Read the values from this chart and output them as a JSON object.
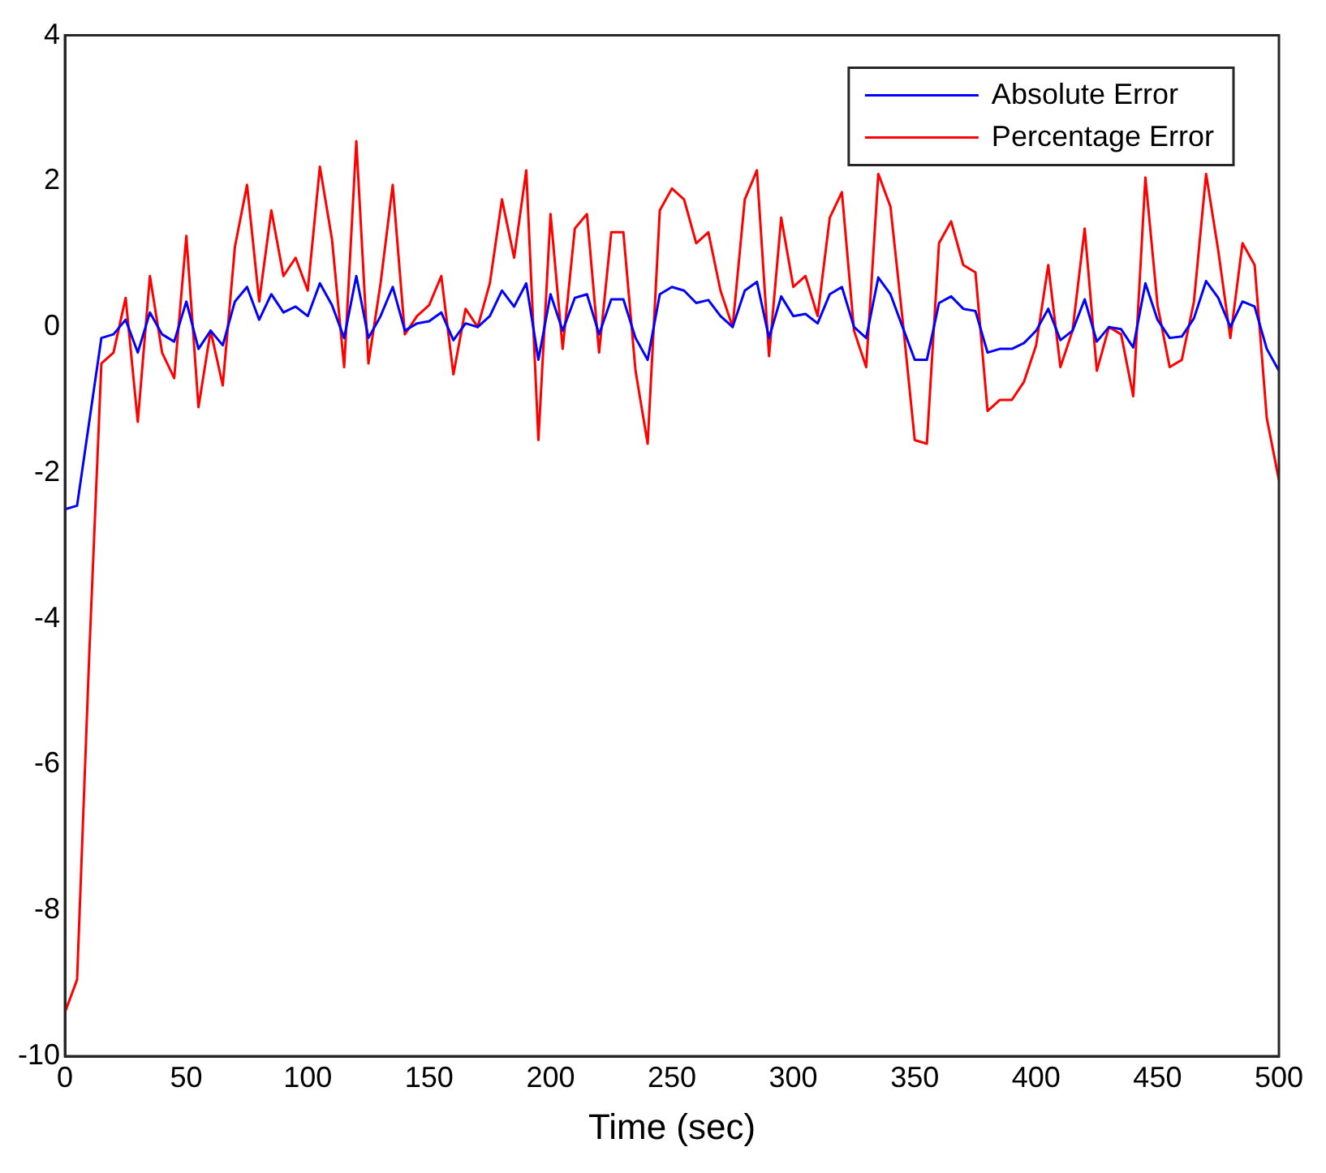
{
  "chart_data": {
    "type": "line",
    "xlabel": "Time (sec)",
    "x": [
      0,
      5,
      10,
      15,
      20,
      25,
      30,
      35,
      40,
      45,
      50,
      55,
      60,
      65,
      70,
      75,
      80,
      85,
      90,
      95,
      100,
      105,
      110,
      115,
      120,
      125,
      130,
      135,
      140,
      145,
      150,
      155,
      160,
      165,
      170,
      175,
      180,
      185,
      190,
      195,
      200,
      205,
      210,
      215,
      220,
      225,
      230,
      235,
      240,
      245,
      250,
      255,
      260,
      265,
      270,
      275,
      280,
      285,
      290,
      295,
      300,
      305,
      310,
      315,
      320,
      325,
      330,
      335,
      340,
      345,
      350,
      355,
      360,
      365,
      370,
      375,
      380,
      385,
      390,
      395,
      400,
      405,
      410,
      415,
      420,
      425,
      430,
      435,
      440,
      445,
      450,
      455,
      460,
      465,
      470,
      475,
      480,
      485,
      490,
      495,
      500
    ],
    "series": [
      {
        "name": "Absolute Error",
        "color": "#0000ff",
        "values": [
          -2.5,
          -2.45,
          -1.3,
          -0.15,
          -0.1,
          0.1,
          -0.35,
          0.2,
          -0.1,
          -0.2,
          0.35,
          -0.3,
          -0.05,
          -0.25,
          0.35,
          0.55,
          0.1,
          0.45,
          0.2,
          0.28,
          0.15,
          0.6,
          0.3,
          -0.15,
          0.7,
          -0.15,
          0.15,
          0.55,
          -0.05,
          0.05,
          0.08,
          0.2,
          -0.18,
          0.05,
          0.0,
          0.15,
          0.5,
          0.28,
          0.6,
          -0.45,
          0.45,
          -0.05,
          0.4,
          0.45,
          -0.1,
          0.38,
          0.38,
          -0.15,
          -0.45,
          0.45,
          0.55,
          0.5,
          0.33,
          0.37,
          0.15,
          0.0,
          0.5,
          0.62,
          -0.15,
          0.42,
          0.15,
          0.18,
          0.05,
          0.45,
          0.55,
          0.0,
          -0.15,
          0.68,
          0.45,
          0.0,
          -0.45,
          -0.45,
          0.33,
          0.42,
          0.25,
          0.22,
          -0.35,
          -0.3,
          -0.3,
          -0.22,
          -0.05,
          0.25,
          -0.18,
          -0.05,
          0.38,
          -0.2,
          0.0,
          -0.03,
          -0.28,
          0.6,
          0.1,
          -0.15,
          -0.13,
          0.12,
          0.63,
          0.4,
          0.0,
          0.35,
          0.28,
          -0.3,
          -0.6
        ]
      },
      {
        "name": "Percentage Error",
        "color": "#ff0000",
        "values": [
          -9.4,
          -8.95,
          -4.5,
          -0.5,
          -0.35,
          0.4,
          -1.3,
          0.7,
          -0.35,
          -0.7,
          1.25,
          -1.1,
          -0.05,
          -0.8,
          1.1,
          1.95,
          0.35,
          1.6,
          0.7,
          0.95,
          0.5,
          2.2,
          1.2,
          -0.55,
          2.55,
          -0.5,
          0.6,
          1.95,
          -0.1,
          0.15,
          0.3,
          0.7,
          -0.65,
          0.25,
          0.0,
          0.6,
          1.75,
          0.95,
          2.15,
          -1.55,
          1.55,
          -0.3,
          1.35,
          1.55,
          -0.35,
          1.3,
          1.3,
          -0.6,
          -1.6,
          1.6,
          1.9,
          1.75,
          1.15,
          1.3,
          0.5,
          0.0,
          1.75,
          2.15,
          -0.4,
          1.5,
          0.55,
          0.7,
          0.15,
          1.5,
          1.85,
          -0.05,
          -0.55,
          2.1,
          1.65,
          0.1,
          -1.55,
          -1.6,
          1.15,
          1.45,
          0.85,
          0.75,
          -1.15,
          -1.0,
          -1.0,
          -0.75,
          -0.25,
          0.85,
          -0.55,
          -0.05,
          1.35,
          -0.6,
          0.0,
          -0.1,
          -0.95,
          2.05,
          0.3,
          -0.55,
          -0.45,
          0.35,
          2.1,
          1.05,
          -0.15,
          1.15,
          0.85,
          -1.25,
          -2.1
        ]
      }
    ],
    "xlim": [
      0,
      500
    ],
    "xticks": [
      0,
      50,
      100,
      150,
      200,
      250,
      300,
      350,
      400,
      450,
      500
    ],
    "ylim": [
      -10,
      4
    ],
    "yticks": [
      -10,
      -8,
      -6,
      -4,
      -2,
      0,
      2,
      4
    ],
    "grid": false,
    "legend": "top right",
    "marker": "none",
    "line_style": "solid"
  }
}
